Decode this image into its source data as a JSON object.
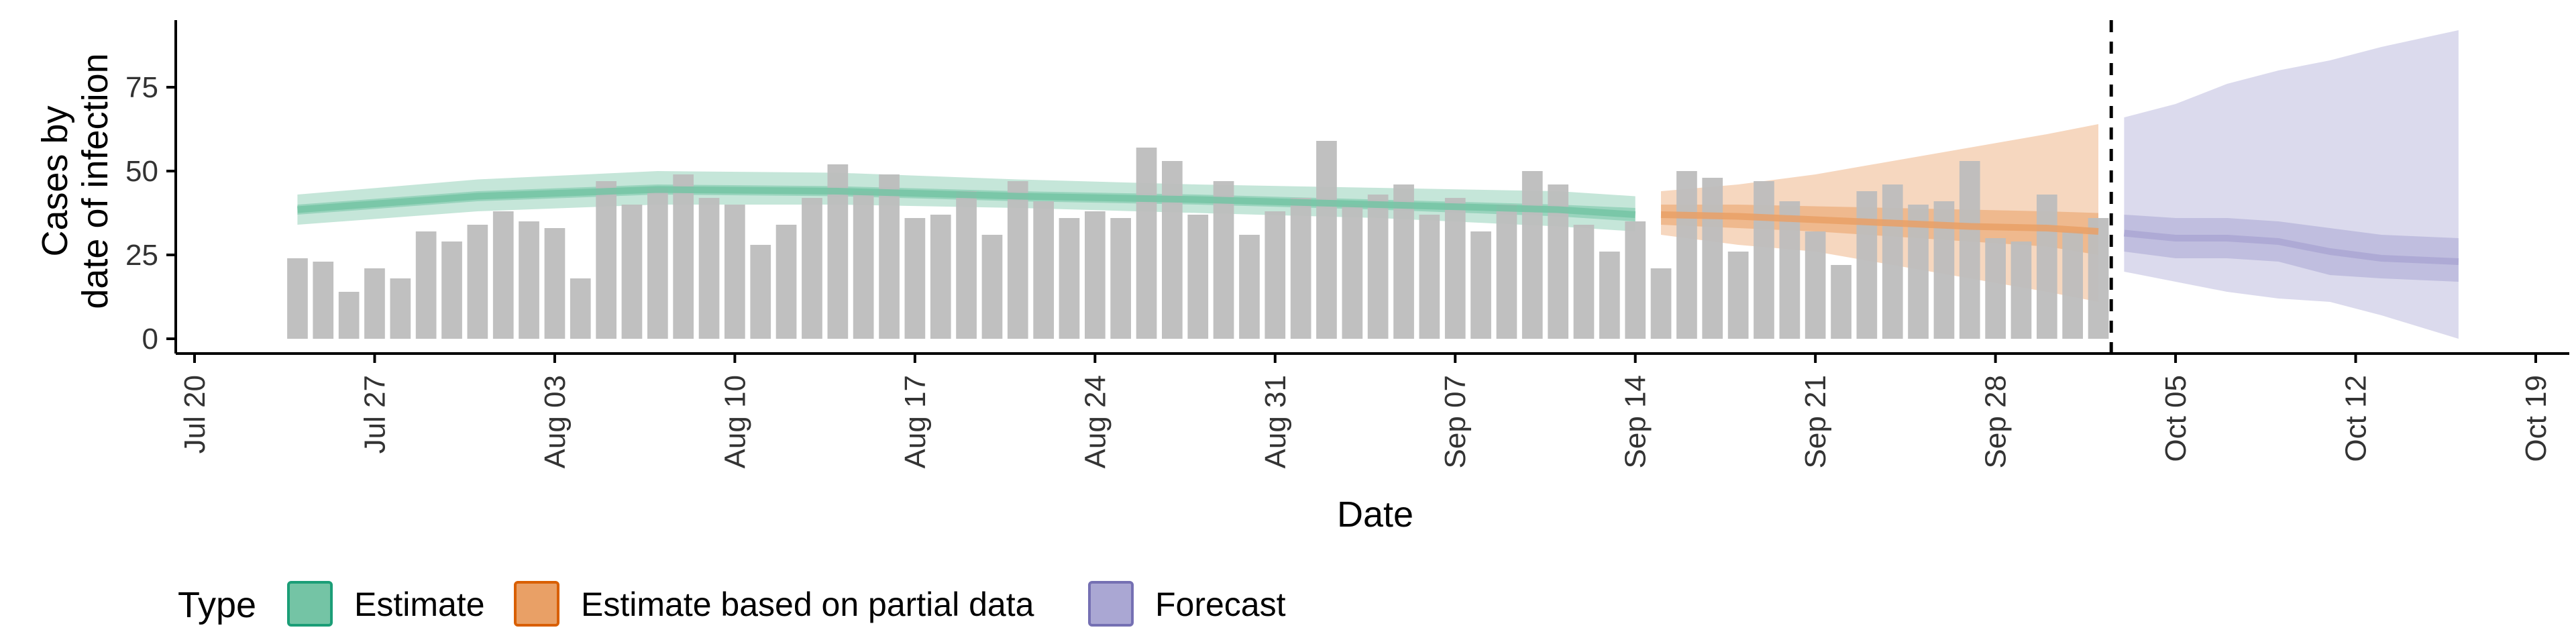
{
  "chart_data": {
    "type": "bar",
    "xlabel": "Date",
    "ylabel_lines": [
      "Cases by",
      "date of infection"
    ],
    "ylim": [
      0,
      95
    ],
    "y_ticks": [
      0,
      25,
      50,
      75
    ],
    "x_range": [
      "2020-07-20",
      "2020-10-19"
    ],
    "x_ticks": [
      "2020-07-20",
      "2020-07-27",
      "2020-08-03",
      "2020-08-10",
      "2020-08-17",
      "2020-08-24",
      "2020-08-31",
      "2020-09-07",
      "2020-09-14",
      "2020-09-21",
      "2020-09-28",
      "2020-10-05",
      "2020-10-12",
      "2020-10-19"
    ],
    "x_tick_labels": [
      "Jul 20",
      "Jul 27",
      "Aug 03",
      "Aug 10",
      "Aug 17",
      "Aug 24",
      "Aug 31",
      "Sep 07",
      "Sep 14",
      "Sep 21",
      "Sep 28",
      "Oct 05",
      "Oct 12",
      "Oct 19"
    ],
    "grid": false,
    "legend_position": "bottom-left",
    "legend_title": "Type",
    "forecast_cutoff": "2020-10-02",
    "bar_color": "#bdbdbd",
    "observed_cases": {
      "start": "2020-07-24",
      "values": [
        24,
        23,
        14,
        21,
        18,
        32,
        29,
        34,
        38,
        35,
        33,
        18,
        47,
        40,
        45,
        49,
        42,
        40,
        28,
        34,
        42,
        52,
        44,
        49,
        36,
        37,
        44,
        31,
        47,
        41,
        36,
        38,
        36,
        57,
        53,
        37,
        47,
        31,
        38,
        42,
        59,
        40,
        43,
        46,
        37,
        42,
        32,
        40,
        50,
        46,
        34,
        26,
        35,
        21,
        50,
        48,
        26,
        47,
        41,
        32,
        22,
        44,
        46,
        40,
        41,
        53,
        30,
        29,
        43,
        32,
        36
      ]
    },
    "series": [
      {
        "name": "Estimate",
        "color": "#1b9e77",
        "fill": "#74c4a5",
        "dates": [
          "2020-07-24",
          "2020-07-31",
          "2020-08-07",
          "2020-08-14",
          "2020-08-21",
          "2020-08-28",
          "2020-09-04",
          "2020-09-11",
          "2020-09-14"
        ],
        "median": [
          38.5,
          42.5,
          44.5,
          44,
          42.5,
          41.5,
          40,
          38.5,
          37
        ],
        "inner_lower": [
          37,
          41,
          43,
          42.5,
          41,
          40,
          38.5,
          36.5,
          35
        ],
        "inner_upper": [
          40,
          44,
          46,
          45.5,
          44,
          43,
          41.5,
          40,
          39
        ],
        "outer_lower": [
          34,
          38,
          40,
          40,
          39,
          37.5,
          36,
          33.5,
          32
        ],
        "outer_upper": [
          43,
          47.5,
          50,
          49.5,
          47.5,
          46,
          45,
          44,
          42.5
        ]
      },
      {
        "name": "Estimate based on partial data",
        "color": "#d95f02",
        "fill": "#e9a066",
        "dates": [
          "2020-09-15",
          "2020-09-18",
          "2020-09-21",
          "2020-09-24",
          "2020-09-27",
          "2020-09-30",
          "2020-10-02"
        ],
        "median": [
          37,
          36.5,
          35.5,
          34.5,
          33.5,
          33,
          32
        ],
        "inner_lower": [
          34,
          33,
          32,
          30.5,
          29,
          27.5,
          25
        ],
        "inner_upper": [
          40,
          40,
          39.5,
          39,
          38.5,
          38,
          37.5
        ],
        "outer_lower": [
          31,
          28,
          26,
          22,
          18,
          14,
          11
        ],
        "outer_upper": [
          44,
          46,
          49,
          53,
          57,
          61,
          64
        ]
      },
      {
        "name": "Forecast",
        "color": "#7570b3",
        "fill": "#aaa7d3",
        "dates": [
          "2020-10-03",
          "2020-10-05",
          "2020-10-07",
          "2020-10-09",
          "2020-10-11",
          "2020-10-13",
          "2020-10-16"
        ],
        "median": [
          31.5,
          30,
          30,
          29,
          26,
          24,
          23
        ],
        "inner_lower": [
          26,
          24,
          24,
          23,
          19,
          18,
          17
        ],
        "inner_upper": [
          37,
          36,
          36,
          35,
          33,
          31,
          30
        ],
        "outer_lower": [
          20,
          17,
          14,
          12,
          11,
          7,
          0
        ],
        "outer_upper": [
          66,
          70,
          76,
          80,
          83,
          87,
          92
        ]
      }
    ]
  }
}
